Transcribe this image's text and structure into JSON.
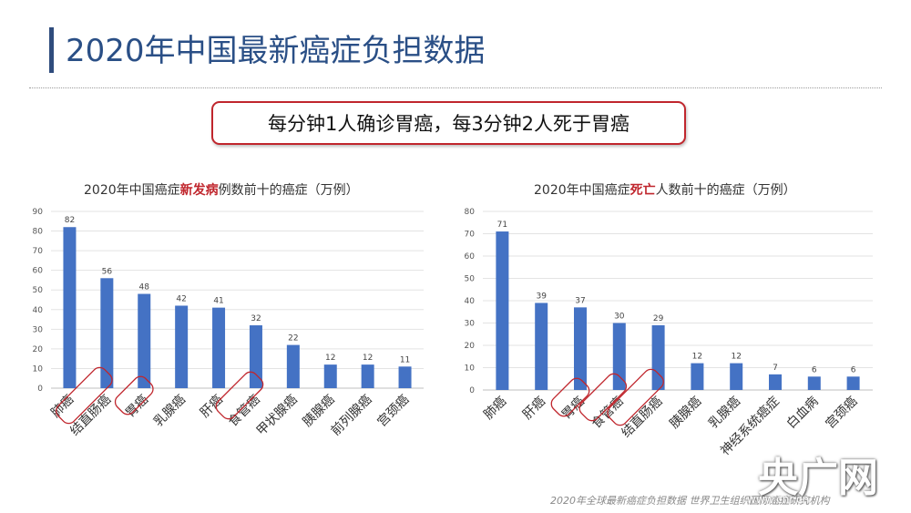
{
  "header": {
    "title": "2020年中国最新癌症负担数据"
  },
  "highlight": {
    "text": "每分钟1人确诊胃癌，每3分钟2人死于胃癌"
  },
  "charts": {
    "left_title": {
      "pre": "2020年中国癌症",
      "hl": "新发病",
      "post": "例数前十的癌症（万例）"
    },
    "right_title": {
      "pre": "2020年中国癌症",
      "hl": "死亡",
      "post": "人数前十的癌症（万例）"
    }
  },
  "footer": {
    "text": "2020年全球最新癌症负担数据  世界卫生组织国际癌症研究机构"
  },
  "watermark": {
    "text": "央广网",
    "url": "www.cnr.cn"
  },
  "colors": {
    "bar": "#4472c4",
    "highlight": "#c0262d",
    "title": "#2a4f86"
  },
  "chart_data": [
    {
      "type": "bar",
      "title": "2020年中国癌症新发病例数前十的癌症（万例）",
      "categories": [
        "肺癌",
        "结直肠癌",
        "胃癌",
        "乳腺癌",
        "肝癌",
        "食管癌",
        "甲状腺癌",
        "胰腺癌",
        "前列腺癌",
        "宫颈癌"
      ],
      "values": [
        82,
        56,
        48,
        42,
        41,
        32,
        22,
        12,
        12,
        11
      ],
      "circled": [
        "结直肠癌",
        "胃癌",
        "食管癌"
      ],
      "ylim": [
        0,
        90
      ],
      "yticks": [
        0,
        10,
        20,
        30,
        40,
        50,
        60,
        70,
        80,
        90
      ],
      "grid": true
    },
    {
      "type": "bar",
      "title": "2020年中国癌症死亡人数前十的癌症（万例）",
      "categories": [
        "肺癌",
        "肝癌",
        "胃癌",
        "食管癌",
        "结直肠癌",
        "胰腺癌",
        "乳腺癌",
        "神经系统癌症",
        "白血病",
        "宫颈癌"
      ],
      "values": [
        71,
        39,
        37,
        30,
        29,
        12,
        12,
        7,
        6,
        6
      ],
      "circled": [
        "胃癌",
        "食管癌",
        "结直肠癌"
      ],
      "ylim": [
        0,
        80
      ],
      "yticks": [
        0,
        10,
        20,
        30,
        40,
        50,
        60,
        70,
        80
      ],
      "grid": true
    }
  ]
}
